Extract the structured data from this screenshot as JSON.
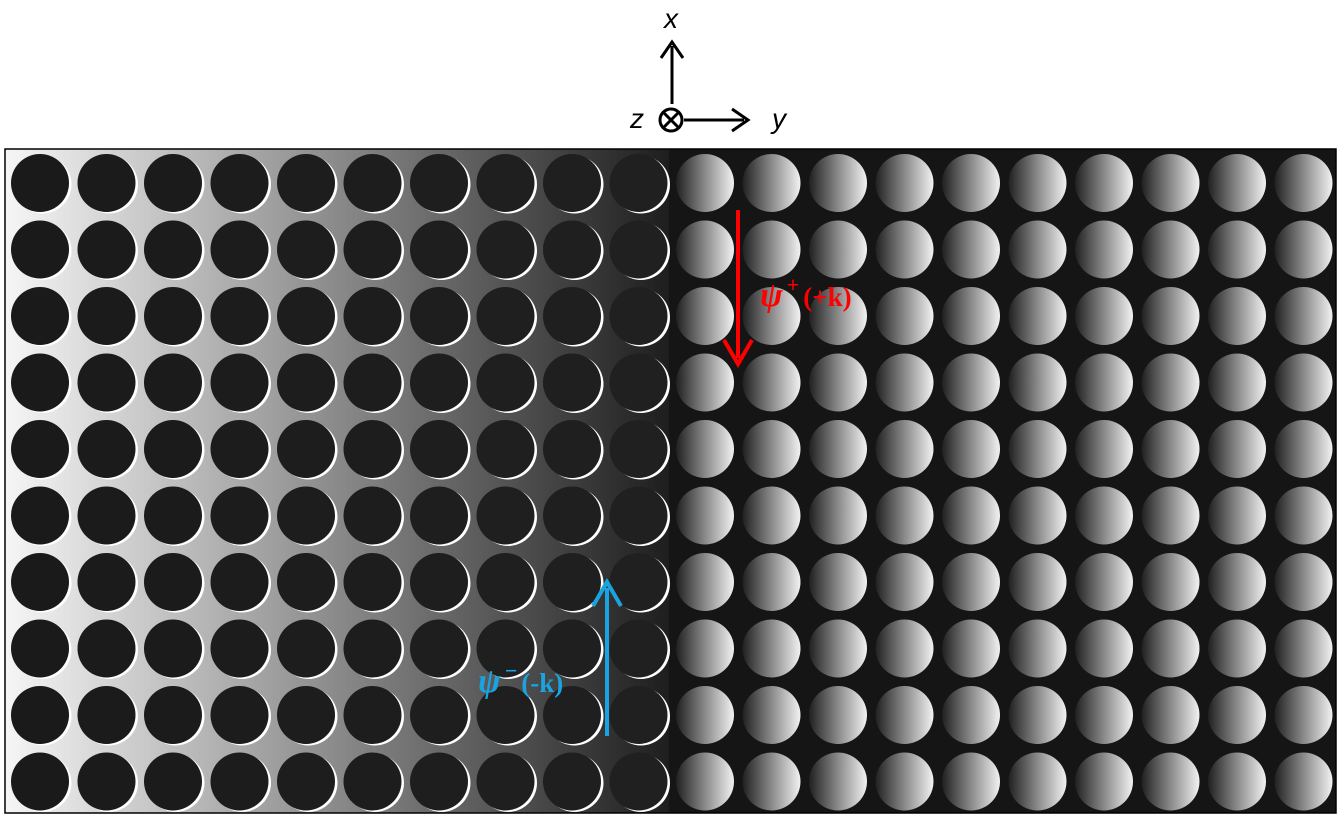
{
  "axes": {
    "x_label": "x",
    "y_label": "y",
    "z_label": "z"
  },
  "lattice": {
    "rows": 10,
    "columns": 20,
    "left_columns": 10,
    "right_columns": 10
  },
  "modes": {
    "forward": {
      "symbol": "ψ",
      "superscript": "+",
      "wavevector": "(+k)",
      "color": "#ff0000",
      "direction": "down"
    },
    "backward": {
      "symbol": "ψ",
      "superscript": "−",
      "wavevector": "(-k)",
      "color": "#1aa3e0",
      "direction": "up"
    }
  },
  "colors": {
    "hole": "#1a1a1a",
    "right_background": "#151515",
    "gradient_light": "#f6f6f6",
    "gradient_dark": "#1e1e1e",
    "rim_highlight": "#ffffff"
  }
}
